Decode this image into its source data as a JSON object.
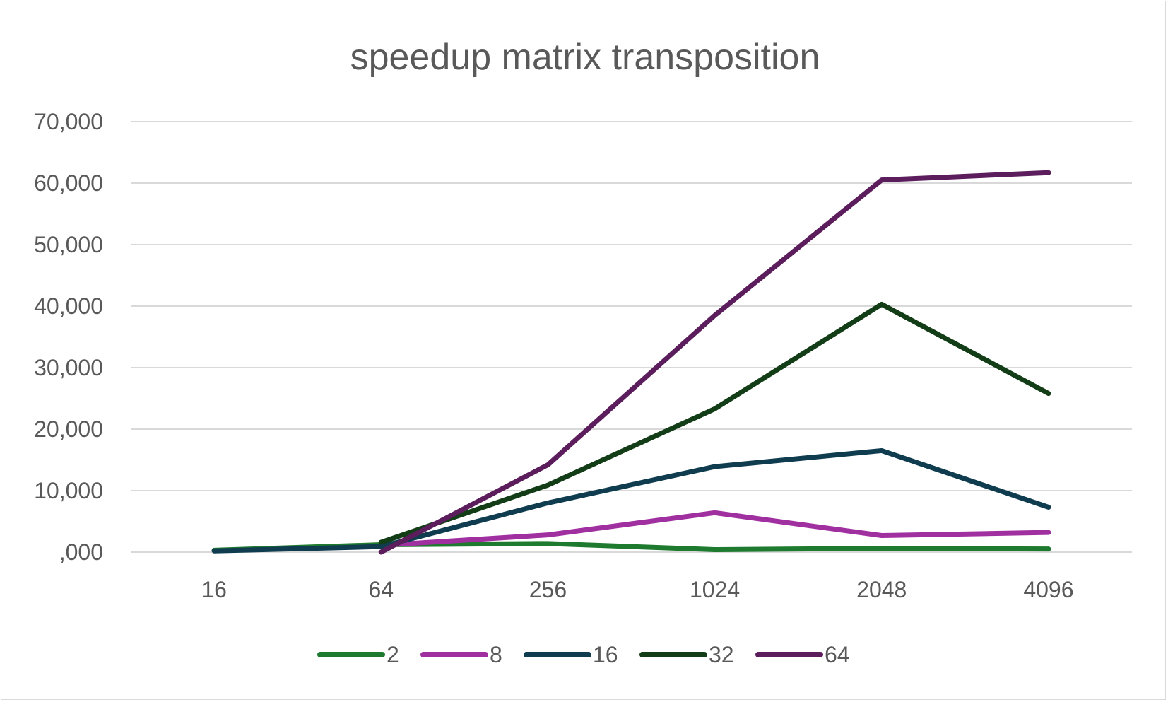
{
  "chart_data": {
    "type": "line",
    "title": "speedup matrix transposition",
    "xlabel": "",
    "ylabel": "",
    "categories": [
      "16",
      "64",
      "256",
      "1024",
      "2048",
      "4096"
    ],
    "ylim": [
      0,
      70000
    ],
    "y_ticks": [
      0,
      10000,
      20000,
      30000,
      40000,
      50000,
      60000,
      70000
    ],
    "y_tick_labels": [
      ",000",
      "10,000",
      "20,000",
      "30,000",
      "40,000",
      "50,000",
      "60,000",
      "70,000"
    ],
    "grid": true,
    "legend_position": "bottom",
    "series": [
      {
        "name": "2",
        "color": "#1e7a2e",
        "values": [
          300,
          1200,
          1400,
          400,
          600,
          500
        ]
      },
      {
        "name": "8",
        "color": "#a02fa0",
        "values": [
          null,
          1100,
          2800,
          6400,
          2700,
          3200
        ]
      },
      {
        "name": "16",
        "color": "#0f3d4f",
        "values": [
          200,
          900,
          8000,
          13900,
          16500,
          7300
        ]
      },
      {
        "name": "32",
        "color": "#123d17",
        "values": [
          null,
          1600,
          10900,
          23300,
          40300,
          25800
        ]
      },
      {
        "name": "64",
        "color": "#5c1d5c",
        "values": [
          null,
          0,
          14200,
          38500,
          60500,
          61700
        ]
      }
    ]
  }
}
